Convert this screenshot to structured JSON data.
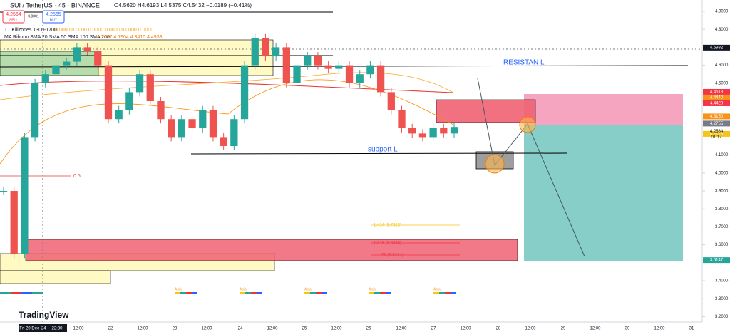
{
  "ui": {
    "symbol": "SUI / TetherUS · 45 · BINANCE",
    "ohlc": "O4.5620 H4.6193 L4.5375 C4.5432 −0.0189 (−0.41%)",
    "sell": "4.2564",
    "sell_label": "SELL",
    "spread": "0.0001",
    "buy": "4.2565",
    "buy_label": "BUY",
    "indicator1": "TT Killzones 1300-1700",
    "indicator1_values": "0.0000 0.0000 0.0000 0.0000 0.0000 0.0000",
    "indicator2": "MA Ribbon SMA 20 SMA 50 SMA 100 SMA 200",
    "indicator2_values": "4.1687 4.1904 4.3410 4.4933",
    "logo": "TradingView"
  },
  "chart_data": {
    "type": "candlestick",
    "ylim": [
      3.17,
      4.9635
    ],
    "yticks": [
      {
        "value": 4.9,
        "label": "4.9000"
      },
      {
        "value": 4.8,
        "label": "4.8000"
      },
      {
        "value": 4.6,
        "label": "4.6000"
      },
      {
        "value": 4.5,
        "label": "4.5000"
      },
      {
        "value": 4.4,
        "label": "4.4000"
      },
      {
        "value": 4.1,
        "label": "4.1000"
      },
      {
        "value": 4.0,
        "label": "4.0000"
      },
      {
        "value": 3.9,
        "label": "3.9000"
      },
      {
        "value": 3.8,
        "label": "3.8000"
      },
      {
        "value": 3.7,
        "label": "3.7000"
      },
      {
        "value": 3.6,
        "label": "3.6000"
      },
      {
        "value": 3.4,
        "label": "3.4000"
      },
      {
        "value": 3.3,
        "label": "3.3000"
      },
      {
        "value": 3.2,
        "label": "3.2000"
      }
    ],
    "price_tags": [
      {
        "value": 4.6982,
        "label": "4.6982",
        "color": "#131722"
      },
      {
        "value": 4.4518,
        "label": "4.4518",
        "color": "#f23645"
      },
      {
        "value": 4.444,
        "label": "4.4440",
        "color": "#f7931a"
      },
      {
        "value": 4.442,
        "label": "4.4420",
        "color": "#f23645"
      },
      {
        "value": 4.315,
        "label": "4.3150",
        "color": "#f7931a"
      },
      {
        "value": 4.2755,
        "label": "4.2755",
        "color": "#787b86"
      },
      {
        "value": 4.2179,
        "label": "4.2179",
        "color": "#f5c518"
      },
      {
        "value": 3.5147,
        "label": "3.5147",
        "color": "#26a69a"
      }
    ],
    "last_price": "4.2564",
    "countdown": "01:17",
    "categories": [
      "Fri 20 Dec '24",
      "22:30",
      "12:00",
      "22",
      "12:00",
      "23",
      "12:00",
      "24",
      "12:00",
      "25",
      "12:00",
      "26",
      "12:00",
      "27",
      "12:00",
      "28",
      "12:00",
      "29",
      "12:00",
      "30",
      "12:00",
      "31"
    ],
    "closes": [
      3.9,
      3.55,
      4.2,
      4.5,
      4.55,
      4.6,
      4.62,
      4.7,
      4.68,
      4.6,
      4.3,
      4.35,
      4.45,
      4.55,
      4.4,
      4.3,
      4.2,
      4.3,
      4.25,
      4.35,
      4.2,
      4.15,
      4.3,
      4.6,
      4.75,
      4.65,
      4.7,
      4.5,
      4.6,
      4.65,
      4.6,
      4.58,
      4.6,
      4.5,
      4.55,
      4.6,
      4.45,
      4.35,
      4.25,
      4.22,
      4.2,
      4.25,
      4.22,
      4.2564
    ],
    "annotations": [
      "RESISTAN L",
      "support L",
      "0.5",
      "1.414 (3.7323)",
      "1.618 (3.6098)",
      "1.75 (3.5414)"
    ],
    "session_labels": [
      "Asia",
      "Asia",
      "Asia",
      "Asia",
      "Asia"
    ]
  }
}
